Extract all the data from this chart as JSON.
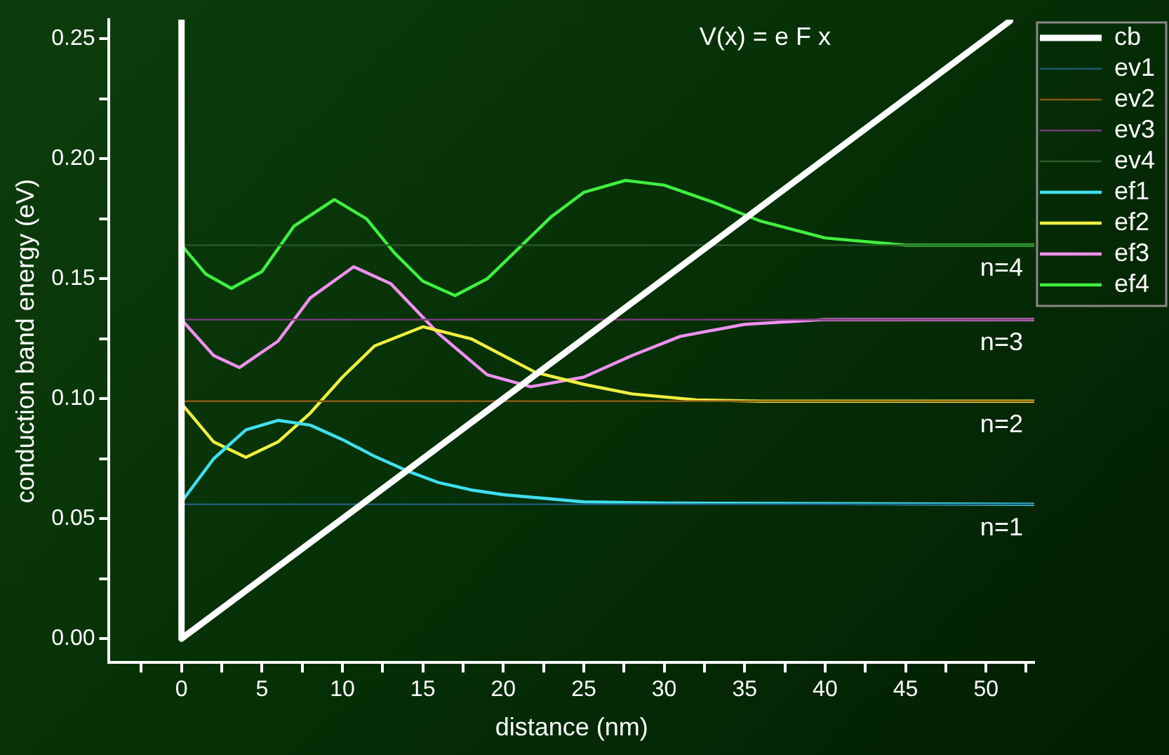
{
  "chart_data": {
    "type": "line",
    "xlabel": "distance (nm)",
    "ylabel": "conduction band energy (eV)",
    "xlim": [
      -4.5,
      53
    ],
    "ylim": [
      -0.01,
      0.258
    ],
    "xticks": [
      {
        "value": -2.5,
        "label": null
      },
      0,
      {
        "value": 2.5,
        "label": null
      },
      5,
      {
        "value": 7.5,
        "label": null
      },
      10,
      {
        "value": 12.5,
        "label": null
      },
      15,
      {
        "value": 17.5,
        "label": null
      },
      20,
      {
        "value": 22.5,
        "label": null
      },
      25,
      {
        "value": 27.5,
        "label": null
      },
      30,
      {
        "value": 32.5,
        "label": null
      },
      35,
      {
        "value": 37.5,
        "label": null
      },
      40,
      {
        "value": 42.5,
        "label": null
      },
      45,
      {
        "value": 47.5,
        "label": null
      },
      50,
      {
        "value": 52.5,
        "label": null
      }
    ],
    "yticks": [
      {
        "value": 0,
        "label": "0.00"
      },
      {
        "value": 0.025,
        "label": null
      },
      {
        "value": 0.05,
        "label": "0.05"
      },
      {
        "value": 0.075,
        "label": null
      },
      {
        "value": 0.1,
        "label": "0.10"
      },
      {
        "value": 0.125,
        "label": null
      },
      {
        "value": 0.15,
        "label": "0.15"
      },
      {
        "value": 0.175,
        "label": null
      },
      {
        "value": 0.2,
        "label": "0.20"
      },
      {
        "value": 0.225,
        "label": null
      },
      {
        "value": 0.25,
        "label": "0.25"
      }
    ],
    "grid": false,
    "legend": "top right",
    "marker": "none",
    "line_style": "solid",
    "annotations": [
      "V(x) = e F x",
      "n=4",
      "n=3",
      "n=2",
      "n=1"
    ],
    "series": [
      {
        "name": "cb",
        "color": "#ffffff",
        "x": [
          0,
          0,
          51.5
        ],
        "values": [
          0.258,
          0,
          0.2575
        ]
      },
      {
        "name": "ev1",
        "color": "#1e5a78",
        "x": [
          0,
          53
        ],
        "values": [
          0.056,
          0.056
        ]
      },
      {
        "name": "ev2",
        "color": "#8a5a14",
        "x": [
          0,
          53
        ],
        "values": [
          0.099,
          0.099
        ]
      },
      {
        "name": "ev3",
        "color": "#7a3a7a",
        "x": [
          0,
          53
        ],
        "values": [
          0.133,
          0.133
        ]
      },
      {
        "name": "ev4",
        "color": "#2a5a2a",
        "x": [
          0,
          53
        ],
        "values": [
          0.164,
          0.164
        ]
      },
      {
        "name": "ef1",
        "color": "#40e0f0",
        "x": [
          0,
          2,
          4,
          6,
          8,
          10,
          12,
          14,
          16,
          18,
          20,
          25,
          30,
          53
        ],
        "values": [
          0.057,
          0.075,
          0.087,
          0.091,
          0.089,
          0.083,
          0.076,
          0.07,
          0.065,
          0.062,
          0.06,
          0.057,
          0.0565,
          0.056
        ]
      },
      {
        "name": "ef2",
        "color": "#f0f040",
        "x": [
          0,
          2,
          4,
          6,
          8,
          10,
          12,
          15,
          18,
          20,
          22,
          25,
          28,
          32,
          36,
          53
        ],
        "values": [
          0.098,
          0.082,
          0.0756,
          0.082,
          0.094,
          0.109,
          0.122,
          0.13,
          0.125,
          0.118,
          0.111,
          0.106,
          0.102,
          0.0995,
          0.099,
          0.099
        ]
      },
      {
        "name": "ef3",
        "color": "#f090f0",
        "x": [
          0,
          2,
          3.6,
          6,
          8,
          10.7,
          13,
          16,
          19,
          21.7,
          25,
          28,
          31,
          35,
          40,
          53
        ],
        "values": [
          0.133,
          0.118,
          0.113,
          0.124,
          0.142,
          0.155,
          0.148,
          0.127,
          0.11,
          0.105,
          0.109,
          0.118,
          0.126,
          0.131,
          0.133,
          0.133
        ]
      },
      {
        "name": "ef4",
        "color": "#40f040",
        "x": [
          0,
          1.5,
          3.1,
          5,
          7,
          9.5,
          11.5,
          13.2,
          15,
          17,
          19,
          21,
          23,
          25,
          27.6,
          30,
          33,
          36,
          40,
          45,
          53
        ],
        "values": [
          0.164,
          0.152,
          0.146,
          0.153,
          0.172,
          0.183,
          0.175,
          0.161,
          0.149,
          0.143,
          0.15,
          0.163,
          0.176,
          0.186,
          0.191,
          0.189,
          0.182,
          0.174,
          0.167,
          0.164,
          0.164
        ]
      }
    ]
  }
}
